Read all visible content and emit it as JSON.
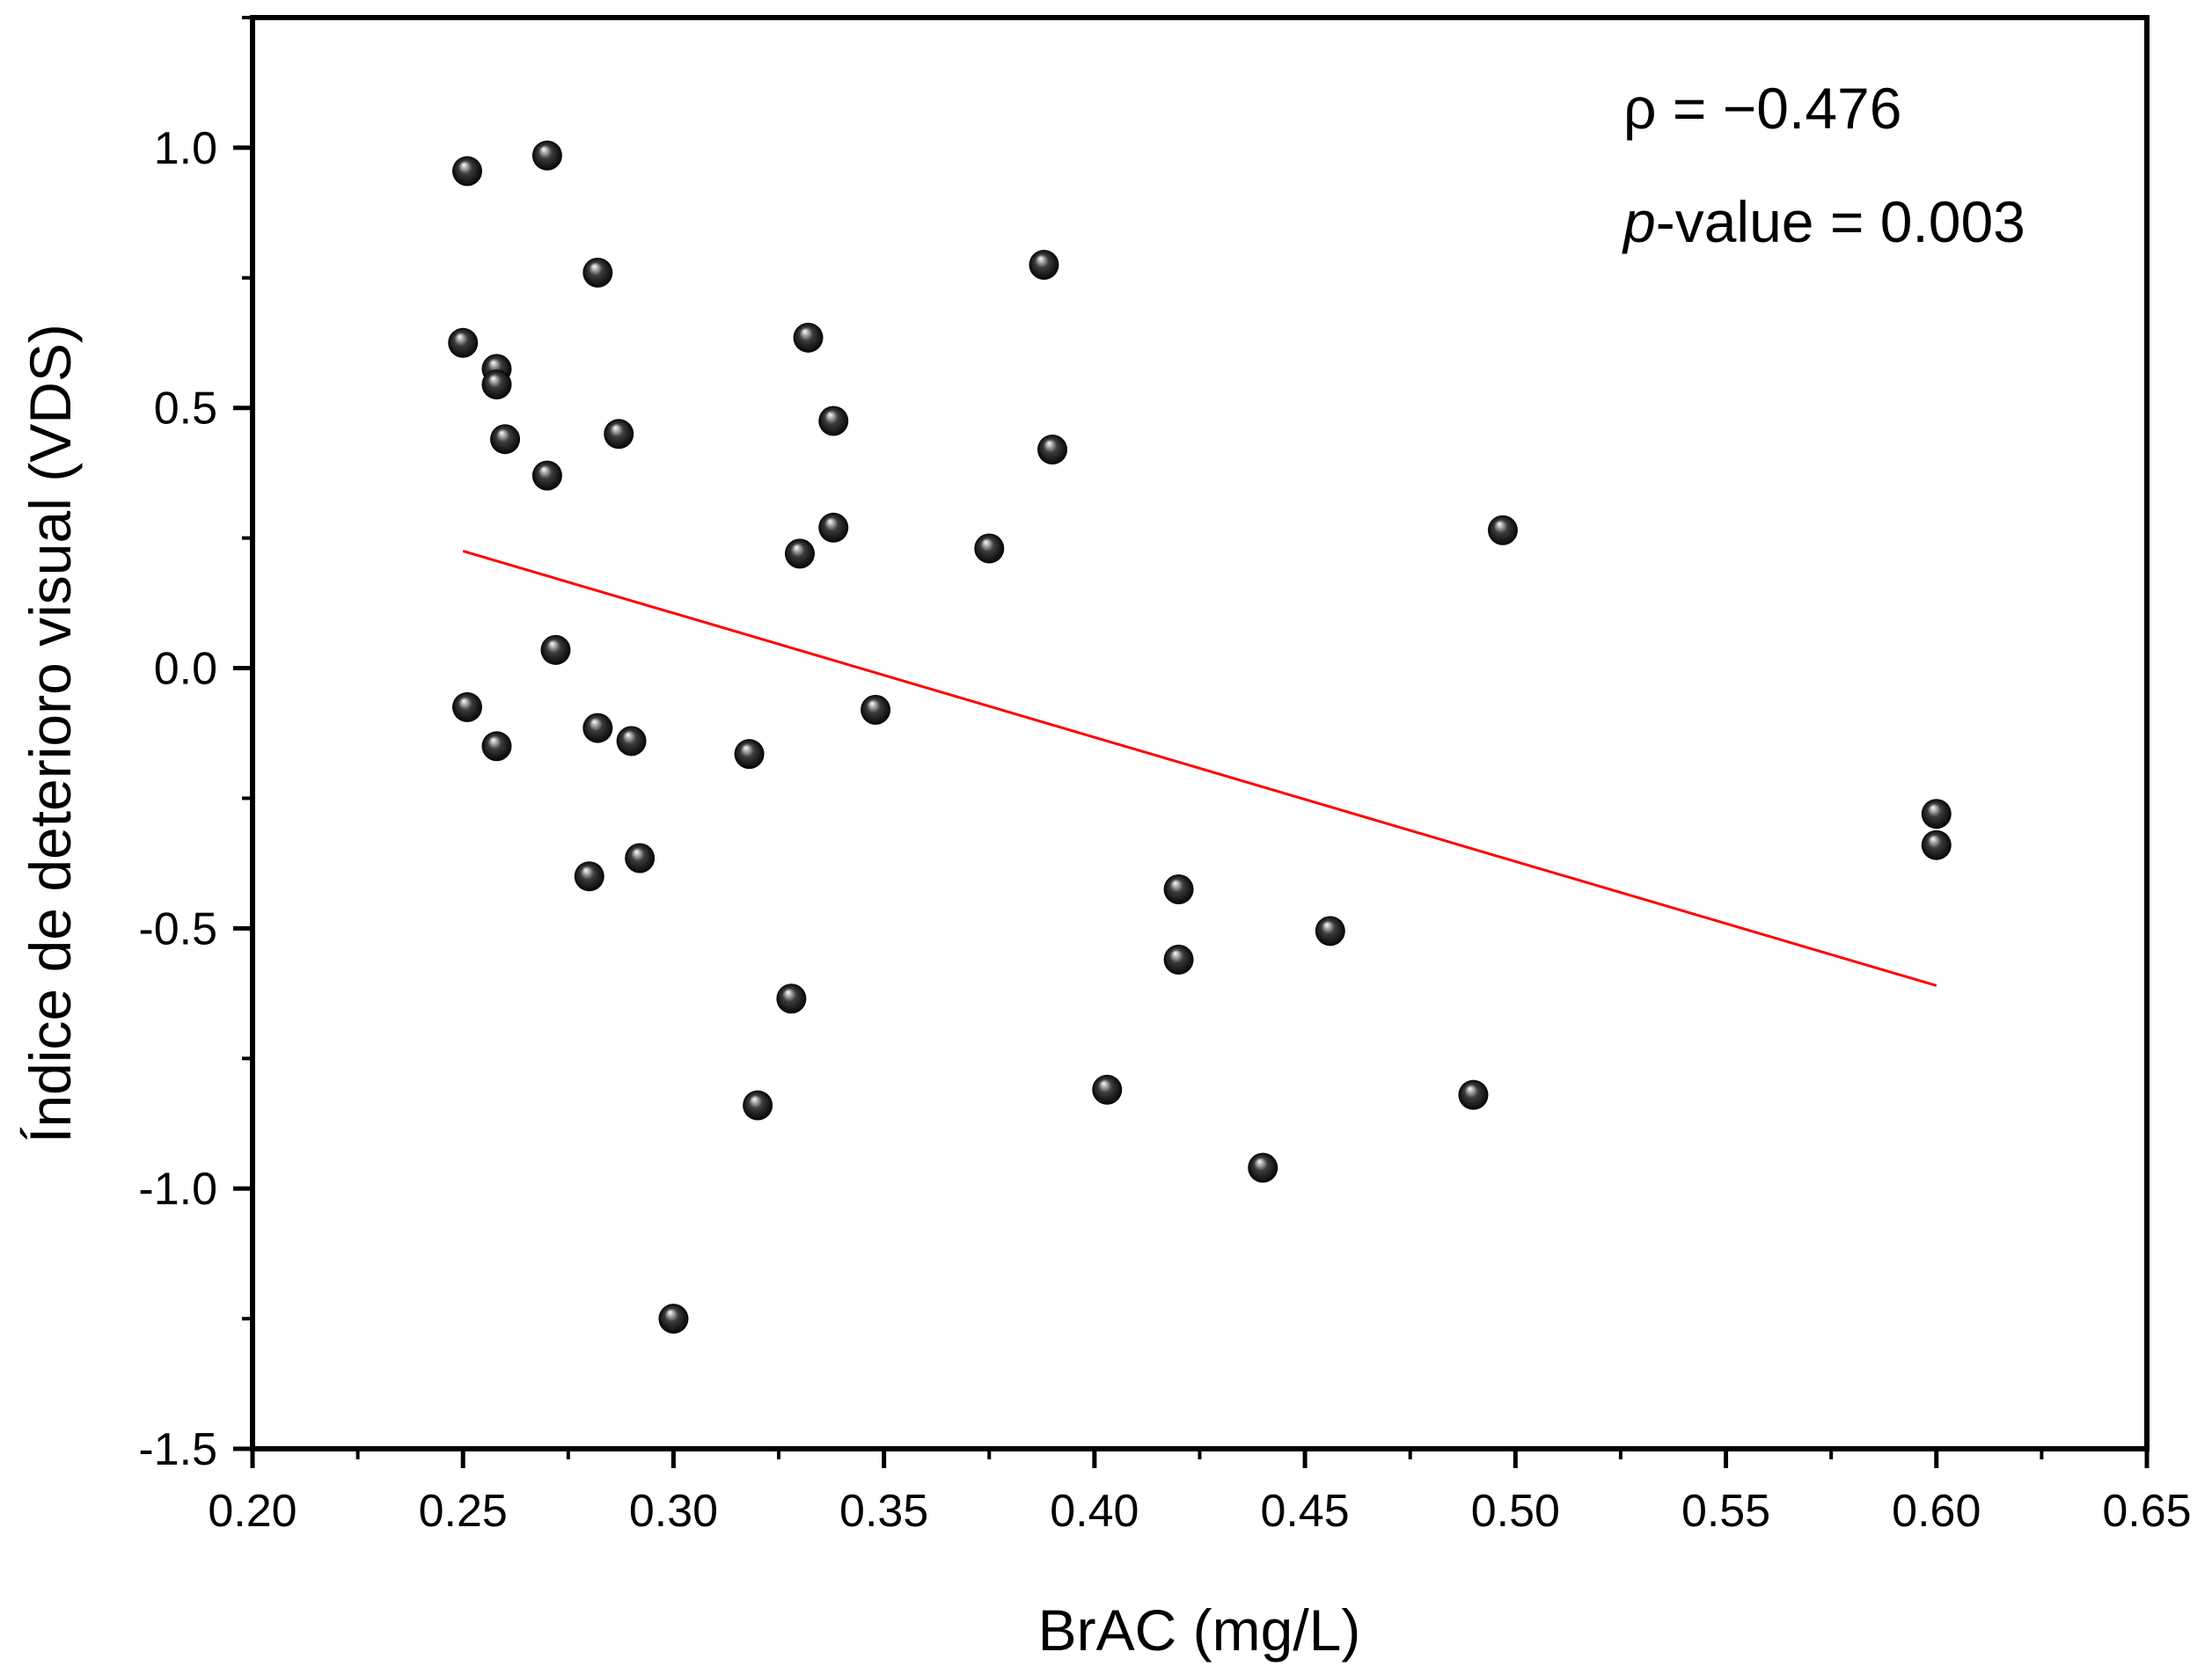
{
  "chart_data": {
    "type": "scatter",
    "xlabel": "BrAC (mg/L)",
    "ylabel": "Índice de deterioro visual (VDS)",
    "xlim": [
      0.2,
      0.65
    ],
    "ylim": [
      -1.5,
      1.25
    ],
    "x_ticks": [
      0.2,
      0.25,
      0.3,
      0.35,
      0.4,
      0.45,
      0.5,
      0.55,
      0.6,
      0.65
    ],
    "x_tick_labels": [
      "0.20",
      "0.25",
      "0.30",
      "0.35",
      "0.40",
      "0.45",
      "0.50",
      "0.55",
      "0.60",
      "0.65"
    ],
    "y_ticks": [
      -1.5,
      -1.0,
      -0.5,
      0.0,
      0.5,
      1.0
    ],
    "y_tick_labels": [
      "-1.5",
      "-1.0",
      "-0.5",
      "0.0",
      "0.5",
      "1.0"
    ],
    "grid": false,
    "series": [
      {
        "name": "VDS",
        "marker": "sphere",
        "color": "#111111",
        "x": [
          0.251,
          0.27,
          0.282,
          0.25,
          0.258,
          0.258,
          0.26,
          0.287,
          0.27,
          0.332,
          0.338,
          0.39,
          0.388,
          0.338,
          0.33,
          0.375,
          0.497,
          0.272,
          0.251,
          0.282,
          0.258,
          0.29,
          0.318,
          0.348,
          0.28,
          0.292,
          0.328,
          0.32,
          0.3,
          0.403,
          0.42,
          0.42,
          0.456,
          0.44,
          0.49,
          0.6,
          0.6
        ],
        "y": [
          0.955,
          0.985,
          0.76,
          0.625,
          0.575,
          0.545,
          0.44,
          0.45,
          0.37,
          0.635,
          0.475,
          0.42,
          0.775,
          0.27,
          0.22,
          0.23,
          0.265,
          0.035,
          -0.075,
          -0.115,
          -0.15,
          -0.14,
          -0.165,
          -0.08,
          -0.4,
          -0.365,
          -0.635,
          -0.84,
          -1.25,
          -0.81,
          -0.425,
          -0.56,
          -0.505,
          -0.96,
          -0.82,
          -0.28,
          -0.34
        ]
      }
    ],
    "fit_line": {
      "color": "#ff0000",
      "x": [
        0.25,
        0.6
      ],
      "y": [
        0.225,
        -0.61
      ]
    },
    "annotations": {
      "rho": "ρ = −0.476",
      "p_label": "p",
      "p_rest": "-value = 0.003"
    }
  }
}
